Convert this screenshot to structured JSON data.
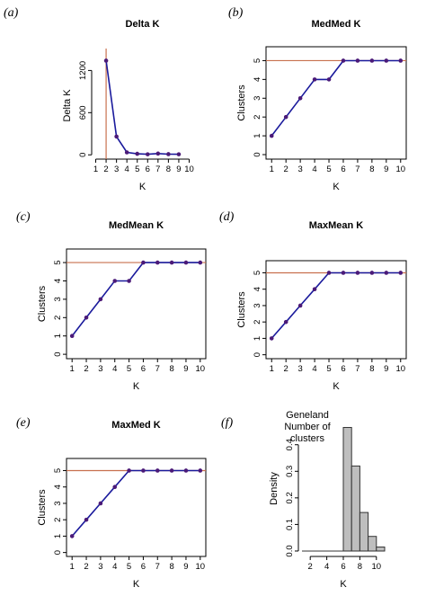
{
  "colors": {
    "series_line": "#1a1a9c",
    "points": "#4b1a78",
    "reference_line": "#c8704e",
    "bar_fill": "#bebebe",
    "bar_stroke": "#333333"
  },
  "chart_data": [
    {
      "panel": "(a)",
      "type": "line",
      "title": "Delta K",
      "xlabel": "K",
      "ylabel": "Delta K",
      "x": [
        2,
        3,
        4,
        5,
        6,
        7,
        8,
        9
      ],
      "y": [
        1340,
        260,
        35,
        15,
        8,
        18,
        10,
        8
      ],
      "xlim": [
        1,
        10
      ],
      "ylim": [
        0,
        1400
      ],
      "xticks": [
        1,
        2,
        3,
        4,
        5,
        6,
        7,
        8,
        9,
        10
      ],
      "yticks": [
        0,
        600,
        1200
      ],
      "vline": 2,
      "box": false
    },
    {
      "panel": "(b)",
      "type": "line",
      "title": "MedMed K",
      "xlabel": "K",
      "ylabel": "Clusters",
      "x": [
        1,
        2,
        3,
        4,
        5,
        6,
        7,
        8,
        9,
        10
      ],
      "y": [
        1,
        2,
        3,
        4,
        4,
        5,
        5,
        5,
        5,
        5
      ],
      "xlim": [
        1,
        10
      ],
      "ylim": [
        0,
        5.5
      ],
      "xticks": [
        1,
        2,
        3,
        4,
        5,
        6,
        7,
        8,
        9,
        10
      ],
      "yticks": [
        0,
        1,
        2,
        3,
        4,
        5
      ],
      "hline": 5,
      "box": true
    },
    {
      "panel": "(c)",
      "type": "line",
      "title": "MedMean K",
      "xlabel": "K",
      "ylabel": "Clusters",
      "x": [
        1,
        2,
        3,
        4,
        5,
        6,
        7,
        8,
        9,
        10
      ],
      "y": [
        1,
        2,
        3,
        4,
        4,
        5,
        5,
        5,
        5,
        5
      ],
      "xlim": [
        1,
        10
      ],
      "ylim": [
        0,
        5.5
      ],
      "xticks": [
        1,
        2,
        3,
        4,
        5,
        6,
        7,
        8,
        9,
        10
      ],
      "yticks": [
        0,
        1,
        2,
        3,
        4,
        5
      ],
      "hline": 5,
      "box": true
    },
    {
      "panel": "(d)",
      "type": "line",
      "title": "MaxMean K",
      "xlabel": "K",
      "ylabel": "Clusters",
      "x": [
        1,
        2,
        3,
        4,
        5,
        6,
        7,
        8,
        9,
        10
      ],
      "y": [
        1,
        2,
        3,
        4,
        5,
        5,
        5,
        5,
        5,
        5
      ],
      "xlim": [
        1,
        10
      ],
      "ylim": [
        0,
        5.5
      ],
      "xticks": [
        1,
        2,
        3,
        4,
        5,
        6,
        7,
        8,
        9,
        10
      ],
      "yticks": [
        0,
        1,
        2,
        3,
        4,
        5
      ],
      "hline": 5,
      "box": true
    },
    {
      "panel": "(e)",
      "type": "line",
      "title": "MaxMed K",
      "xlabel": "K",
      "ylabel": "Clusters",
      "x": [
        1,
        2,
        3,
        4,
        5,
        6,
        7,
        8,
        9,
        10
      ],
      "y": [
        1,
        2,
        3,
        4,
        5,
        5,
        5,
        5,
        5,
        5
      ],
      "xlim": [
        1,
        10
      ],
      "ylim": [
        0,
        5.5
      ],
      "xticks": [
        1,
        2,
        3,
        4,
        5,
        6,
        7,
        8,
        9,
        10
      ],
      "yticks": [
        0,
        1,
        2,
        3,
        4,
        5
      ],
      "hline": 5,
      "box": true
    },
    {
      "panel": "(f)",
      "type": "bar",
      "title": "",
      "annotation": [
        "Geneland",
        "Number of",
        "clusters"
      ],
      "xlabel": "K",
      "ylabel": "Density",
      "bins": [
        [
          1,
          2
        ],
        [
          2,
          3
        ],
        [
          3,
          4
        ],
        [
          4,
          5
        ],
        [
          5,
          6
        ],
        [
          6,
          7
        ],
        [
          7,
          8
        ],
        [
          8,
          9
        ],
        [
          9,
          10
        ],
        [
          10,
          11
        ]
      ],
      "values": [
        0,
        0,
        0,
        0,
        0,
        0.465,
        0.32,
        0.145,
        0.055,
        0.015
      ],
      "xlim": [
        1,
        11
      ],
      "ylim": [
        0,
        0.47
      ],
      "xticks": [
        2,
        4,
        6,
        8,
        10
      ],
      "yticks": [
        0.0,
        0.1,
        0.2,
        0.3,
        0.4
      ],
      "box": false
    }
  ]
}
